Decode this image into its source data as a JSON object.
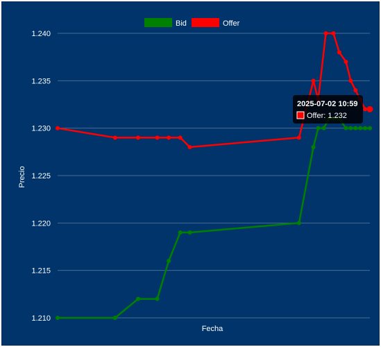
{
  "chart_data": {
    "type": "line",
    "xlabel": "Fecha",
    "ylabel": "Precio",
    "ylim": [
      1.21,
      1.24
    ],
    "yticks": [
      "1.210",
      "1.215",
      "1.220",
      "1.225",
      "1.230",
      "1.235",
      "1.240"
    ],
    "series": [
      {
        "name": "Bid",
        "color": "#008000",
        "x": [
          0,
          6,
          8.4,
          10.4,
          11.6,
          12.8,
          13.8,
          25.2,
          26.7,
          27.2,
          27.8,
          28.3,
          28.8,
          29.4,
          30.1,
          30.6,
          31.1,
          31.6,
          32.1,
          32.6
        ],
        "y": [
          1.21,
          1.21,
          1.212,
          1.212,
          1.216,
          1.219,
          1.219,
          1.22,
          1.228,
          1.23,
          1.23,
          1.231,
          1.231,
          1.231,
          1.23,
          1.23,
          1.23,
          1.23,
          1.23,
          1.23
        ]
      },
      {
        "name": "Offer",
        "color": "#ff0000",
        "x": [
          0,
          6,
          8.4,
          10.4,
          11.6,
          12.8,
          13.8,
          25.2,
          26.7,
          27.2,
          28.0,
          28.8,
          29.4,
          30.1,
          30.6,
          31.1,
          31.6,
          32.1,
          32.6
        ],
        "y": [
          1.23,
          1.229,
          1.229,
          1.229,
          1.229,
          1.229,
          1.228,
          1.229,
          1.235,
          1.233,
          1.24,
          1.24,
          1.238,
          1.237,
          1.235,
          1.234,
          1.233,
          1.232,
          1.232
        ]
      }
    ],
    "legend": "top",
    "grid": true,
    "tooltip": {
      "title": "2025-07-02 10:59",
      "label": "Offer: 1.232",
      "color": "#ff0000"
    }
  }
}
